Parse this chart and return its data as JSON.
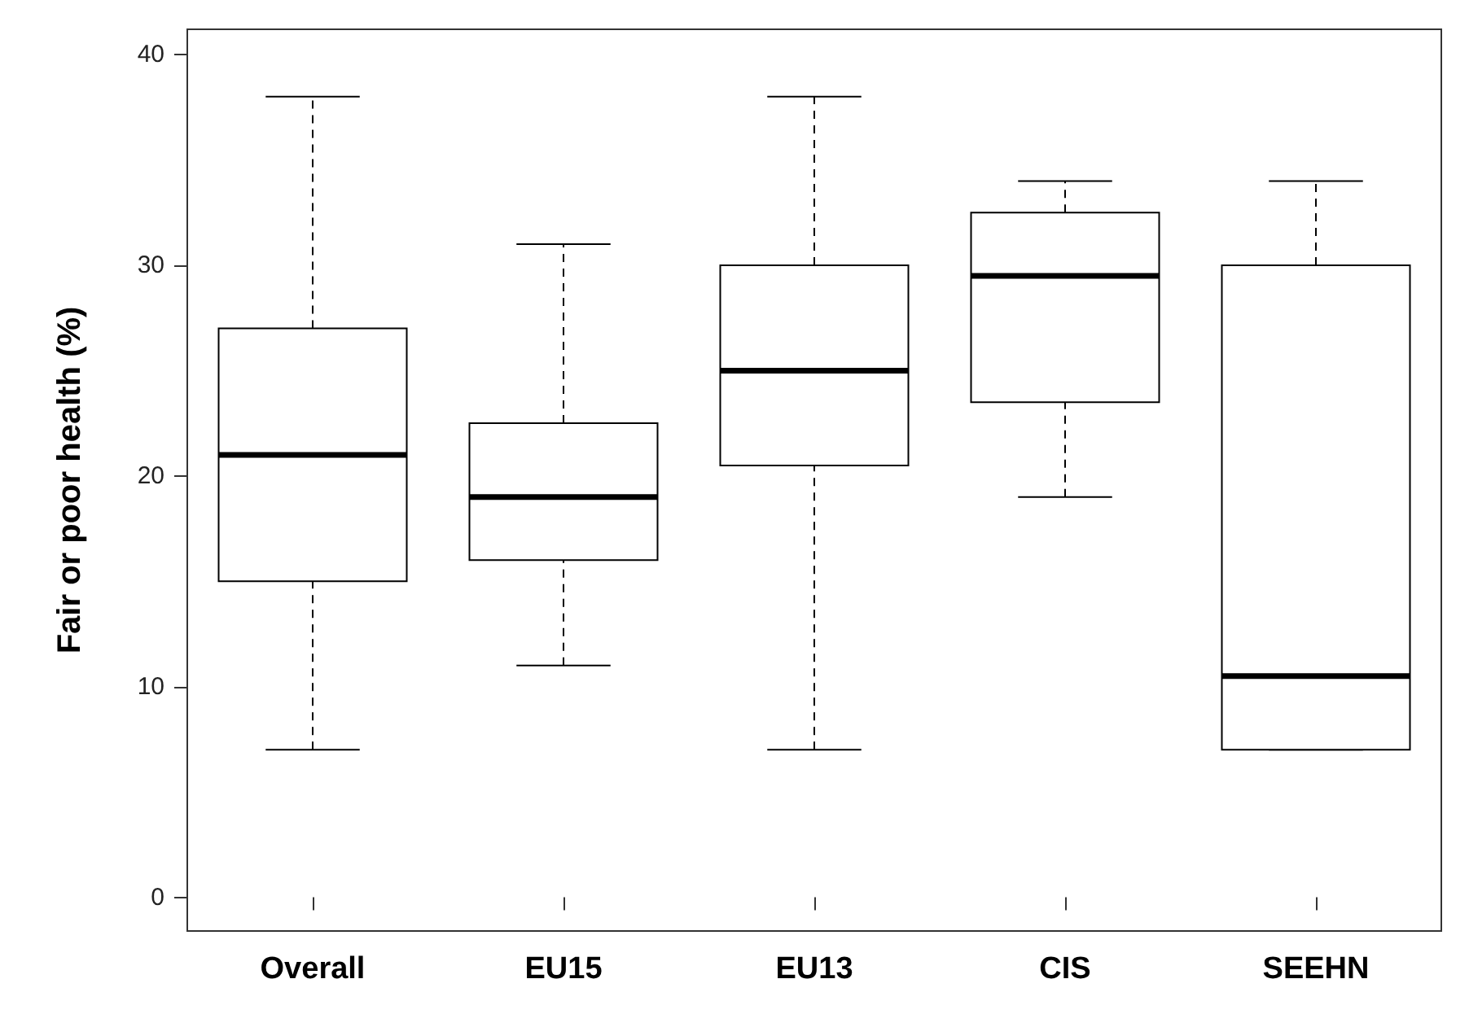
{
  "chart_data": {
    "type": "box",
    "ylabel": "Fair or poor health (%)",
    "categories": [
      "Overall",
      "EU15",
      "EU13",
      "CIS",
      "SEEHN"
    ],
    "boxes": [
      {
        "low": 7,
        "q1": 15,
        "median": 21,
        "q3": 27,
        "high": 38
      },
      {
        "low": 11,
        "q1": 16,
        "median": 19,
        "q3": 22.5,
        "high": 31
      },
      {
        "low": 7,
        "q1": 20.5,
        "median": 25,
        "q3": 30,
        "high": 38
      },
      {
        "low": 19,
        "q1": 23.5,
        "median": 29.5,
        "q3": 32.5,
        "high": 34
      },
      {
        "low": 7,
        "q1": 7,
        "median": 10.5,
        "q3": 30,
        "high": 34
      }
    ],
    "ylim": [
      -1.6,
      41.2
    ],
    "yticks": [
      0,
      10,
      20,
      30,
      40
    ]
  }
}
